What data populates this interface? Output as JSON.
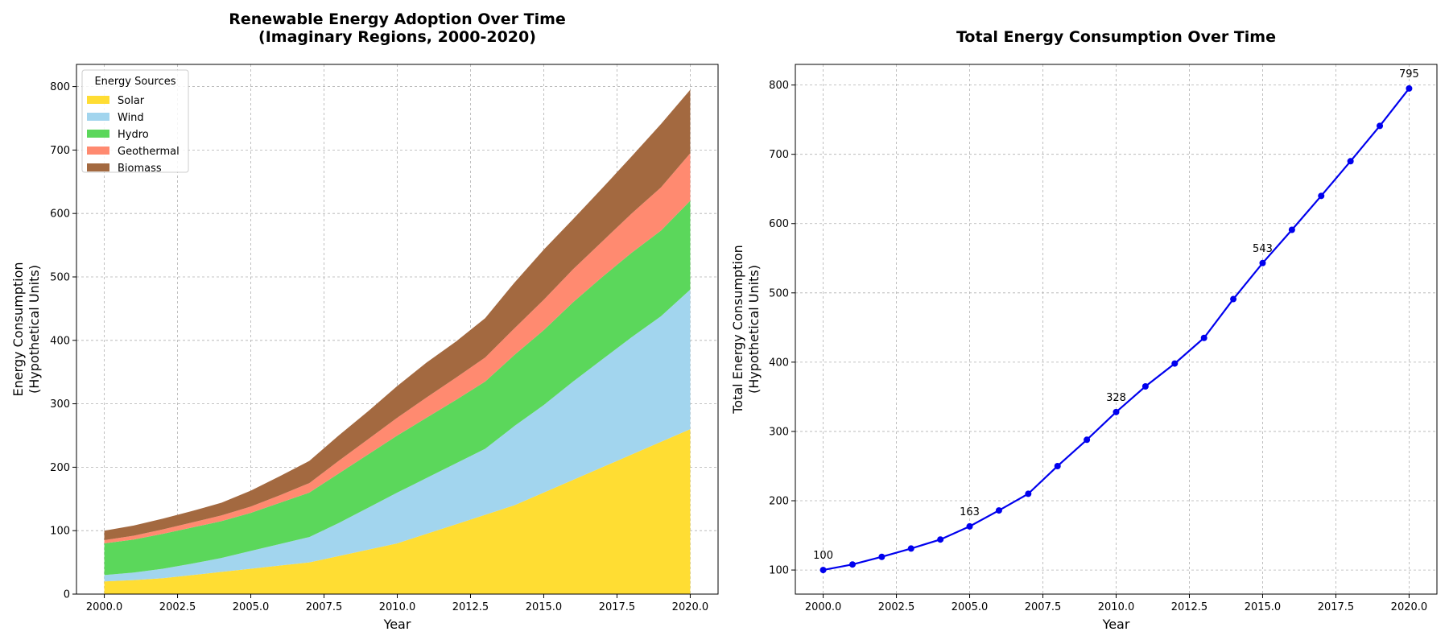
{
  "chart_data": [
    {
      "type": "area",
      "title_lines": [
        "Renewable Energy Adoption Over Time",
        "(Imaginary Regions, 2000-2020)"
      ],
      "xlabel": "Year",
      "ylabel_lines": [
        "Energy Consumption",
        "(Hypothetical Units)"
      ],
      "xlim": [
        1999.05,
        2020.95
      ],
      "ylim": [
        0,
        835
      ],
      "xticks": [
        2000.0,
        2002.5,
        2005.0,
        2007.5,
        2010.0,
        2012.5,
        2015.0,
        2017.5,
        2020.0
      ],
      "xtick_labels": [
        "2000.0",
        "2002.5",
        "2005.0",
        "2007.5",
        "2010.0",
        "2012.5",
        "2015.0",
        "2017.5",
        "2020.0"
      ],
      "yticks": [
        0,
        100,
        200,
        300,
        400,
        500,
        600,
        700,
        800
      ],
      "ytick_labels": [
        "0",
        "100",
        "200",
        "300",
        "400",
        "500",
        "600",
        "700",
        "800"
      ],
      "grid": true,
      "legend": {
        "title": "Energy Sources",
        "position": "top-left"
      },
      "x": [
        2000,
        2001,
        2002,
        2003,
        2004,
        2005,
        2006,
        2007,
        2008,
        2009,
        2010,
        2011,
        2012,
        2013,
        2014,
        2015,
        2016,
        2017,
        2018,
        2019,
        2020
      ],
      "series": [
        {
          "name": "Solar",
          "color": "#ffdd33",
          "values": [
            20,
            22,
            25,
            30,
            35,
            40,
            45,
            50,
            60,
            70,
            80,
            95,
            110,
            125,
            140,
            160,
            180,
            200,
            220,
            240,
            260
          ]
        },
        {
          "name": "Wind",
          "color": "#a2d5ee",
          "values": [
            10,
            12,
            15,
            18,
            22,
            28,
            34,
            40,
            52,
            66,
            80,
            88,
            96,
            104,
            125,
            138,
            155,
            170,
            185,
            198,
            220
          ]
        },
        {
          "name": "Hydro",
          "color": "#5bd75b",
          "values": [
            50,
            52,
            55,
            57,
            58,
            60,
            65,
            70,
            78,
            84,
            90,
            95,
            100,
            106,
            112,
            118,
            125,
            130,
            133,
            135,
            140
          ]
        },
        {
          "name": "Geothermal",
          "color": "#ff8a70",
          "values": [
            5,
            6,
            7,
            8,
            9,
            10,
            12,
            15,
            20,
            24,
            28,
            32,
            35,
            38,
            42,
            48,
            52,
            56,
            62,
            68,
            75
          ]
        },
        {
          "name": "Biomass",
          "color": "#a36940",
          "values": [
            15,
            16,
            17,
            18,
            20,
            25,
            30,
            35,
            40,
            44,
            50,
            55,
            57,
            62,
            72,
            79,
            79,
            84,
            90,
            100,
            100
          ]
        }
      ]
    },
    {
      "type": "line",
      "title_lines": [
        "Total Energy Consumption Over Time"
      ],
      "xlabel": "Year",
      "ylabel_lines": [
        "Total Energy Consumption",
        "(Hypothetical Units)"
      ],
      "xlim": [
        1999.05,
        2020.95
      ],
      "ylim": [
        65.25,
        829.75
      ],
      "xticks": [
        2000.0,
        2002.5,
        2005.0,
        2007.5,
        2010.0,
        2012.5,
        2015.0,
        2017.5,
        2020.0
      ],
      "xtick_labels": [
        "2000.0",
        "2002.5",
        "2005.0",
        "2007.5",
        "2010.0",
        "2012.5",
        "2015.0",
        "2017.5",
        "2020.0"
      ],
      "yticks": [
        100,
        200,
        300,
        400,
        500,
        600,
        700,
        800
      ],
      "ytick_labels": [
        "100",
        "200",
        "300",
        "400",
        "500",
        "600",
        "700",
        "800"
      ],
      "grid": true,
      "color": "#0000ee",
      "x": [
        2000,
        2001,
        2002,
        2003,
        2004,
        2005,
        2006,
        2007,
        2008,
        2009,
        2010,
        2011,
        2012,
        2013,
        2014,
        2015,
        2016,
        2017,
        2018,
        2019,
        2020
      ],
      "values": [
        100,
        108,
        119,
        131,
        144,
        163,
        186,
        210,
        250,
        288,
        328,
        365,
        398,
        435,
        491,
        543,
        591,
        640,
        690,
        741,
        795
      ],
      "annotations": [
        {
          "x": 2000,
          "y": 100,
          "text": "100"
        },
        {
          "x": 2005,
          "y": 163,
          "text": "163"
        },
        {
          "x": 2010,
          "y": 328,
          "text": "328"
        },
        {
          "x": 2015,
          "y": 543,
          "text": "543"
        },
        {
          "x": 2020,
          "y": 795,
          "text": "795"
        }
      ]
    }
  ]
}
